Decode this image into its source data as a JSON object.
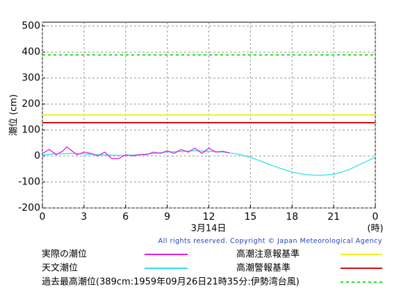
{
  "chart_data": {
    "type": "line",
    "y_label": "潮位 (cm)",
    "x_label": "3月14日",
    "x_unit": "(時)",
    "copyright": "All rights reserved. Copyright © Japan Meteorological Agency",
    "xlim": [
      0,
      24
    ],
    "xticks": [
      0,
      3,
      6,
      9,
      12,
      15,
      18,
      21,
      {
        "value": 24,
        "label": "0"
      }
    ],
    "ylim": [
      -200,
      515
    ],
    "yticks": [
      -200,
      -100,
      0,
      100,
      200,
      300,
      400,
      500
    ],
    "grid": true,
    "series": [
      {
        "name": "実際の潮位",
        "color": "#e020e0",
        "x": [
          0,
          0.5,
          1,
          1.5,
          1.75,
          2,
          2.5,
          3,
          3.5,
          4,
          4.5,
          5,
          5.5,
          6,
          6.5,
          7,
          7.5,
          8,
          8.5,
          9,
          9.5,
          10,
          10.5,
          11,
          11.5,
          12,
          12.5,
          13,
          13.5
        ],
        "values": [
          10,
          25,
          5,
          20,
          35,
          25,
          5,
          15,
          10,
          0,
          15,
          -10,
          -10,
          5,
          0,
          5,
          5,
          15,
          10,
          20,
          10,
          25,
          15,
          30,
          10,
          30,
          15,
          18,
          12
        ]
      },
      {
        "name": "天文潮位",
        "color": "#30e0f0",
        "x": [
          0,
          1,
          2,
          3,
          4,
          5,
          6,
          7,
          8,
          9,
          10,
          11,
          12,
          13,
          14,
          15,
          16,
          17,
          18,
          19,
          20,
          21,
          22,
          23,
          24
        ],
        "values": [
          5,
          8,
          10,
          8,
          5,
          3,
          2,
          5,
          10,
          15,
          18,
          20,
          18,
          15,
          8,
          -5,
          -25,
          -45,
          -62,
          -72,
          -75,
          -70,
          -55,
          -30,
          -5
        ]
      }
    ],
    "reference_lines": [
      {
        "name": "高潮注意報基準",
        "value": 158,
        "color": "#f0f020",
        "dashed": false
      },
      {
        "name": "高潮警報基準",
        "value": 128,
        "color": "#d01010",
        "dashed": false
      },
      {
        "name": "過去最高潮位(389cm:1959年09月26日21時35分:伊勢湾台風)",
        "value": 389,
        "color": "#20e020",
        "dashed": true
      }
    ]
  }
}
